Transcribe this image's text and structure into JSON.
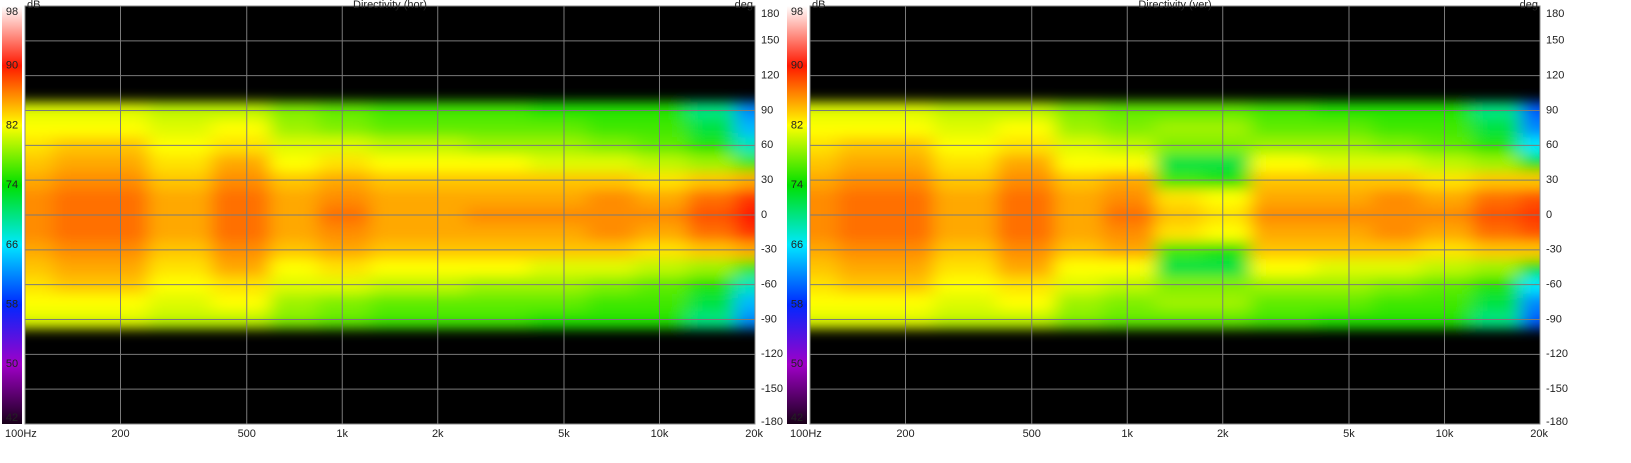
{
  "chart_data": [
    {
      "type": "heatmap",
      "title": "Directivity (hor)",
      "colorbar_label": "dB",
      "ylabel": "deg",
      "xscale": "log",
      "grid": true,
      "xlim": [
        100,
        20000
      ],
      "xticks": [
        {
          "value": 100,
          "label": "100Hz"
        },
        200,
        500,
        {
          "value": 1000,
          "label": "1k"
        },
        {
          "value": 2000,
          "label": "2k"
        },
        {
          "value": 5000,
          "label": "5k"
        },
        {
          "value": 10000,
          "label": "10k"
        },
        {
          "value": 20000,
          "label": "20k"
        }
      ],
      "ylim": [
        -180,
        180
      ],
      "yticks": [
        -180,
        -150,
        -120,
        -90,
        -60,
        -30,
        0,
        30,
        60,
        90,
        120,
        150,
        180
      ],
      "clim": [
        42,
        98
      ],
      "cticks": [
        42,
        50,
        58,
        66,
        74,
        82,
        90,
        98
      ],
      "colormap": [
        "#180018",
        "#a000c8",
        "#0028ff",
        "#00e8ff",
        "#00e000",
        "#ffff00",
        "#ff1800",
        "#ffffff"
      ],
      "x": [
        100,
        150,
        200,
        300,
        500,
        700,
        1000,
        1500,
        2000,
        3000,
        5000,
        7000,
        10000,
        15000,
        20000
      ],
      "y": [
        -90,
        -75,
        -60,
        -45,
        -30,
        -15,
        0,
        15,
        30,
        45,
        60,
        75,
        90
      ],
      "z": [
        [
          81,
          81,
          81,
          80,
          80,
          78,
          77,
          76,
          76,
          76,
          75,
          75,
          75,
          70,
          62
        ],
        [
          82,
          82,
          82,
          81,
          82,
          79,
          78,
          77,
          77,
          77,
          77,
          76,
          76,
          72,
          64
        ],
        [
          83,
          84,
          84,
          82,
          83,
          81,
          81,
          80,
          80,
          79,
          79,
          78,
          77,
          75,
          68
        ],
        [
          84,
          85,
          85,
          83,
          85,
          82,
          83,
          82,
          82,
          82,
          81,
          81,
          80,
          79,
          76
        ],
        [
          85,
          86,
          86,
          84,
          86,
          84,
          85,
          84,
          84,
          84,
          84,
          84,
          83,
          84,
          85
        ],
        [
          86,
          87,
          87,
          85,
          87,
          85,
          86,
          85,
          85,
          85,
          85,
          86,
          85,
          87,
          89
        ],
        [
          86,
          87,
          87,
          85,
          87,
          85,
          87,
          85,
          85,
          86,
          86,
          86,
          86,
          88,
          90
        ],
        [
          86,
          87,
          87,
          85,
          87,
          85,
          86,
          85,
          85,
          85,
          85,
          86,
          85,
          87,
          89
        ],
        [
          85,
          86,
          86,
          84,
          86,
          84,
          85,
          84,
          84,
          84,
          84,
          84,
          83,
          84,
          85
        ],
        [
          84,
          85,
          85,
          83,
          85,
          82,
          83,
          82,
          82,
          82,
          81,
          81,
          80,
          79,
          76
        ],
        [
          83,
          84,
          84,
          82,
          83,
          81,
          81,
          80,
          80,
          79,
          79,
          78,
          77,
          75,
          68
        ],
        [
          82,
          82,
          82,
          81,
          82,
          79,
          78,
          77,
          77,
          77,
          77,
          76,
          76,
          72,
          64
        ],
        [
          81,
          81,
          81,
          80,
          80,
          78,
          77,
          76,
          76,
          76,
          75,
          75,
          75,
          70,
          62
        ]
      ]
    },
    {
      "type": "heatmap",
      "title": "Directivity (ver)",
      "colorbar_label": "dB",
      "ylabel": "deg",
      "xscale": "log",
      "grid": true,
      "xlim": [
        100,
        20000
      ],
      "xticks": [
        {
          "value": 100,
          "label": "100Hz"
        },
        200,
        500,
        {
          "value": 1000,
          "label": "1k"
        },
        {
          "value": 2000,
          "label": "2k"
        },
        {
          "value": 5000,
          "label": "5k"
        },
        {
          "value": 10000,
          "label": "10k"
        },
        {
          "value": 20000,
          "label": "20k"
        }
      ],
      "ylim": [
        -180,
        180
      ],
      "yticks": [
        -180,
        -150,
        -120,
        -90,
        -60,
        -30,
        0,
        30,
        60,
        90,
        120,
        150,
        180
      ],
      "clim": [
        42,
        98
      ],
      "cticks": [
        42,
        50,
        58,
        66,
        74,
        82,
        90,
        98
      ],
      "colormap": [
        "#180018",
        "#a000c8",
        "#0028ff",
        "#00e8ff",
        "#00e000",
        "#ffff00",
        "#ff1800",
        "#ffffff"
      ],
      "x": [
        100,
        150,
        200,
        300,
        500,
        700,
        1000,
        1500,
        2000,
        3000,
        5000,
        7000,
        10000,
        15000,
        20000
      ],
      "y": [
        -90,
        -75,
        -60,
        -45,
        -30,
        -15,
        0,
        15,
        30,
        45,
        60,
        75,
        90
      ],
      "z": [
        [
          81,
          81,
          81,
          80,
          80,
          78,
          77,
          77,
          77,
          76,
          75,
          75,
          75,
          70,
          60
        ],
        [
          82,
          82,
          82,
          81,
          82,
          79,
          78,
          79,
          79,
          77,
          77,
          76,
          76,
          72,
          62
        ],
        [
          83,
          84,
          84,
          82,
          83,
          81,
          80,
          78,
          78,
          79,
          79,
          78,
          77,
          75,
          66
        ],
        [
          84,
          85,
          85,
          83,
          85,
          82,
          82,
          72,
          72,
          82,
          81,
          81,
          80,
          79,
          74
        ],
        [
          85,
          86,
          86,
          84,
          86,
          84,
          85,
          76,
          75,
          84,
          84,
          84,
          83,
          84,
          84
        ],
        [
          86,
          87,
          87,
          85,
          87,
          85,
          86,
          83,
          82,
          85,
          85,
          86,
          85,
          87,
          88
        ],
        [
          86,
          87,
          87,
          85,
          87,
          85,
          87,
          84,
          83,
          86,
          86,
          86,
          86,
          88,
          89
        ],
        [
          86,
          87,
          87,
          85,
          87,
          85,
          86,
          83,
          82,
          85,
          85,
          86,
          85,
          87,
          88
        ],
        [
          85,
          86,
          86,
          84,
          86,
          84,
          85,
          76,
          75,
          84,
          84,
          84,
          83,
          84,
          84
        ],
        [
          84,
          85,
          85,
          83,
          85,
          82,
          82,
          72,
          72,
          82,
          81,
          81,
          80,
          79,
          74
        ],
        [
          83,
          84,
          84,
          82,
          83,
          81,
          80,
          78,
          78,
          79,
          79,
          78,
          77,
          75,
          66
        ],
        [
          82,
          82,
          82,
          81,
          82,
          79,
          78,
          79,
          79,
          77,
          77,
          76,
          76,
          72,
          62
        ],
        [
          81,
          81,
          81,
          80,
          80,
          78,
          77,
          77,
          77,
          76,
          75,
          75,
          75,
          70,
          60
        ]
      ]
    }
  ]
}
